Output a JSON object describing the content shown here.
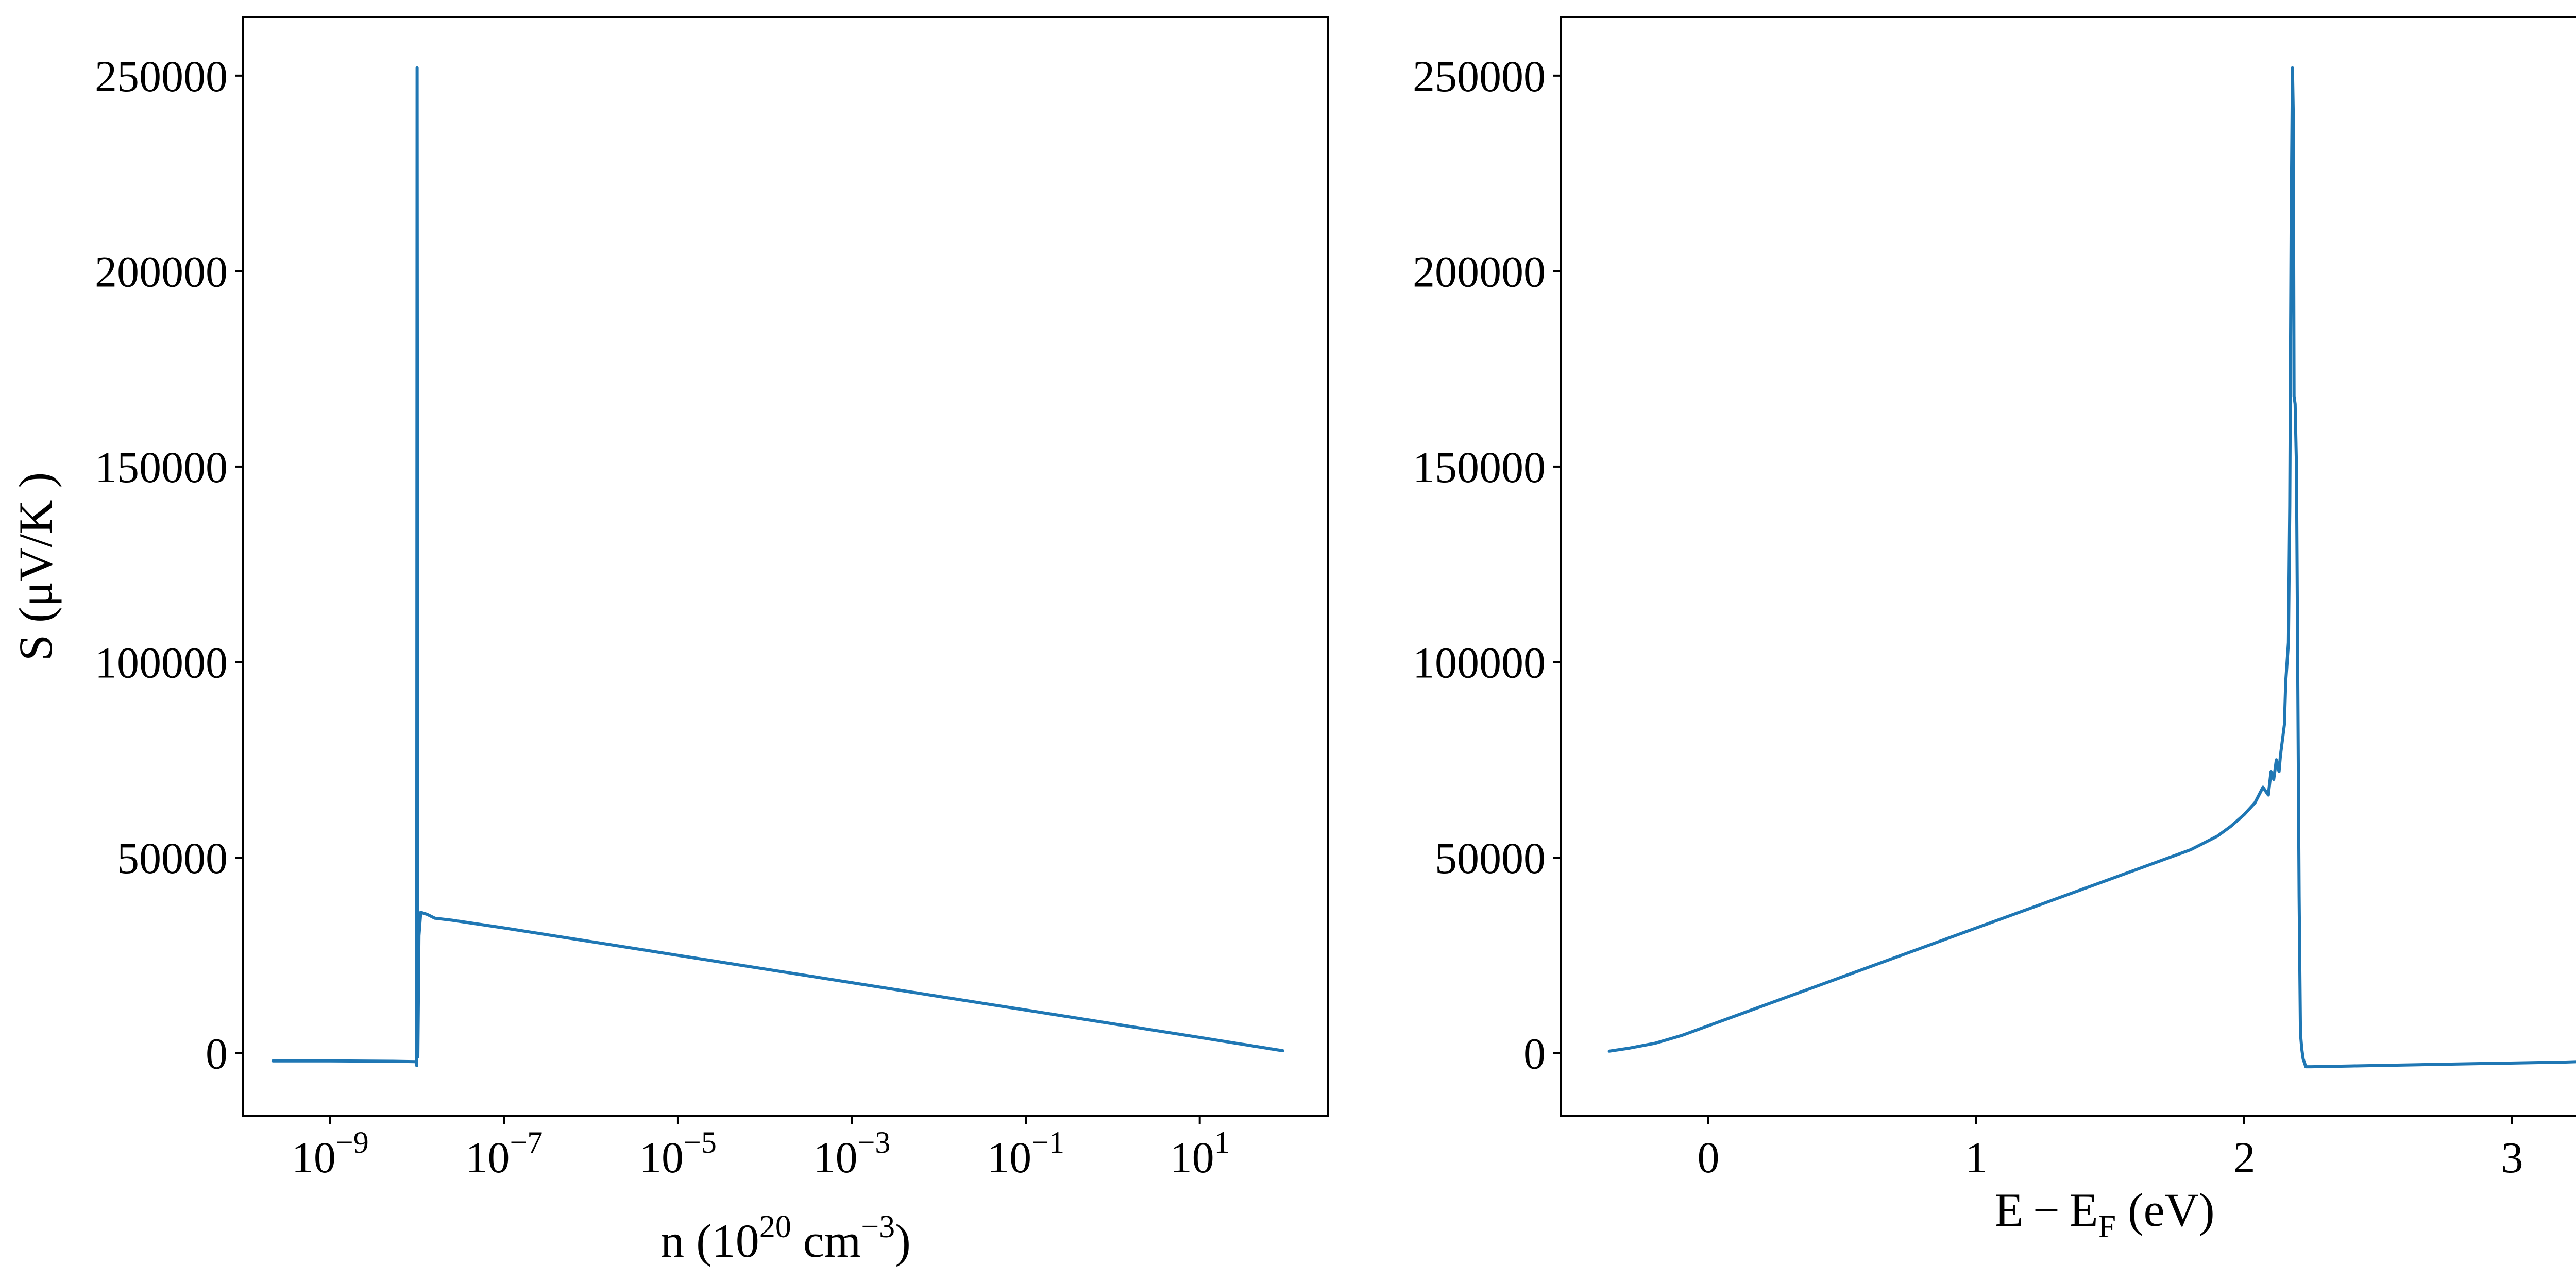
{
  "colors": {
    "series": "#1f77b4",
    "axes": "#000000",
    "background": "#ffffff"
  },
  "chart_data": [
    {
      "type": "line",
      "xscale": "log",
      "xlabel_parts": {
        "a": "n (10",
        "b": "20",
        "c": " cm",
        "d": "−3",
        "e": ")"
      },
      "ylabel": "S (μV/K )",
      "xlim": [
        1e-10,
        300
      ],
      "ylim": [
        -16000,
        265000
      ],
      "grid": false,
      "legend": "none",
      "y_ticks": [
        0,
        50000,
        100000,
        150000,
        200000,
        250000
      ],
      "y_tick_labels": [
        "0",
        "50000",
        "100000",
        "150000",
        "200000",
        "250000"
      ],
      "x_ticks": [
        {
          "value": 1e-09,
          "base": "10",
          "exp": "−9"
        },
        {
          "value": 1e-07,
          "base": "10",
          "exp": "−7"
        },
        {
          "value": 1e-05,
          "base": "10",
          "exp": "−5"
        },
        {
          "value": 0.001,
          "base": "10",
          "exp": "−3"
        },
        {
          "value": 0.1,
          "base": "10",
          "exp": "−1"
        },
        {
          "value": 10,
          "base": "10",
          "exp": "1"
        }
      ],
      "series": [
        {
          "x": [
            2.2e-10,
            1e-09,
            5e-09,
            9.7e-09,
            9.9e-09,
            1e-08,
            1.02e-08,
            1.05e-08,
            1.1e-08,
            1.3e-08,
            1.6e-08,
            2.5e-08,
            1e-07,
            1e-06,
            1e-05,
            0.0001,
            0.001,
            0.01,
            0.1,
            1,
            10,
            90
          ],
          "y": [
            -2000,
            -2000,
            -2100,
            -2200,
            -3200,
            252000,
            -1000,
            30000,
            36000,
            35500,
            34500,
            34000,
            32000,
            28500,
            25000,
            21500,
            18000,
            14500,
            11000,
            7500,
            4000,
            600
          ]
        }
      ]
    },
    {
      "type": "line",
      "xscale": "linear",
      "xlabel_parts": {
        "a": "E − E",
        "b": "F",
        "c": " (eV)"
      },
      "xlim": [
        -0.55,
        3.5
      ],
      "ylim": [
        -16000,
        265000
      ],
      "grid": false,
      "legend": "none",
      "y_ticks": [
        0,
        50000,
        100000,
        150000,
        200000,
        250000
      ],
      "y_tick_labels": [
        "0",
        "50000",
        "100000",
        "150000",
        "200000",
        "250000"
      ],
      "x_ticks": [
        0,
        1,
        2,
        3
      ],
      "x_tick_labels": [
        "0",
        "1",
        "2",
        "3"
      ],
      "series": [
        {
          "x": [
            -0.37,
            -0.3,
            -0.2,
            -0.1,
            0.0,
            0.2,
            0.5,
            0.8,
            1.0,
            1.3,
            1.6,
            1.8,
            1.9,
            1.95,
            2.0,
            2.04,
            2.07,
            2.09,
            2.1,
            2.11,
            2.12,
            2.13,
            2.135,
            2.15,
            2.155,
            2.165,
            2.17,
            2.175,
            2.18,
            2.183,
            2.186,
            2.19,
            2.195,
            2.2,
            2.205,
            2.21,
            2.215,
            2.22,
            2.23,
            2.25,
            2.4,
            2.8,
            3.2,
            3.33
          ],
          "y": [
            500,
            1200,
            2500,
            4500,
            7000,
            12000,
            19500,
            27000,
            32000,
            39500,
            47000,
            52000,
            55500,
            58000,
            61000,
            64000,
            68000,
            66000,
            72000,
            70000,
            75000,
            72000,
            76000,
            84000,
            95000,
            105000,
            140000,
            210000,
            252000,
            240000,
            168000,
            166000,
            150000,
            95000,
            40000,
            5000,
            1000,
            -1500,
            -3500,
            -3500,
            -3300,
            -2800,
            -2300,
            -2000
          ]
        }
      ]
    }
  ]
}
